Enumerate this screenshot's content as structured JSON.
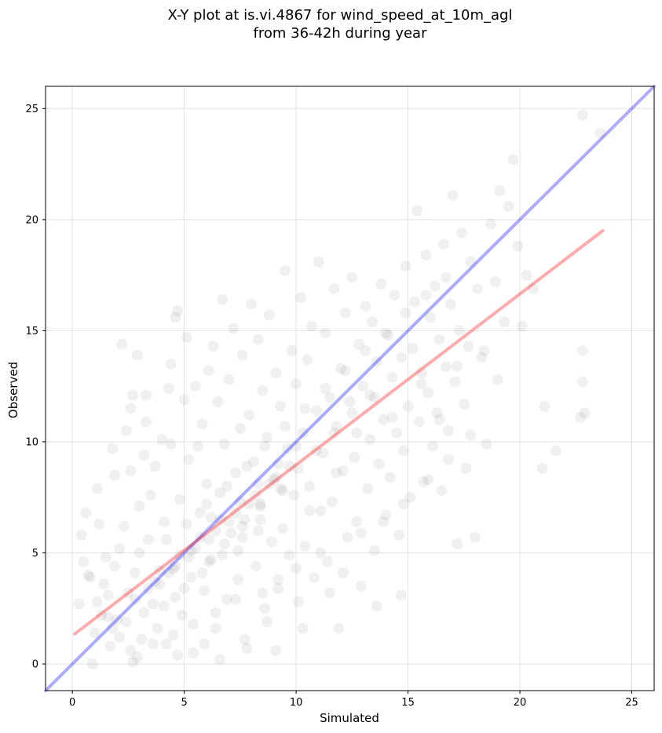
{
  "chart_data": {
    "type": "scatter",
    "title_line1": "X-Y plot at is.vi.4867 for wind_speed_at_10m_agl",
    "title_line2": "from 36-42h during year",
    "xlabel": "Simulated",
    "ylabel": "Observed",
    "xlim": [
      -1.2,
      26
    ],
    "ylim": [
      -1.2,
      26
    ],
    "x_ticks": [
      0,
      5,
      10,
      15,
      20,
      25
    ],
    "y_ticks": [
      0,
      5,
      10,
      15,
      20,
      25
    ],
    "grid": true,
    "series": [
      {
        "style": "scatter",
        "color": "#000000",
        "opacity": 0.06,
        "points": [
          [
            0.3,
            2.7
          ],
          [
            0.5,
            4.6
          ],
          [
            0.6,
            6.8
          ],
          [
            0.4,
            5.8
          ],
          [
            0.9,
            0.0
          ],
          [
            0.8,
            3.9
          ],
          [
            1.1,
            7.9
          ],
          [
            1.2,
            6.3
          ],
          [
            1.0,
            1.4
          ],
          [
            1.3,
            2.2
          ],
          [
            1.5,
            4.8
          ],
          [
            1.6,
            3.1
          ],
          [
            1.8,
            9.7
          ],
          [
            1.9,
            8.5
          ],
          [
            2.0,
            2.0
          ],
          [
            2.2,
            14.4
          ],
          [
            2.1,
            5.2
          ],
          [
            2.4,
            10.5
          ],
          [
            2.6,
            11.5
          ],
          [
            2.7,
            12.1
          ],
          [
            2.7,
            0.1
          ],
          [
            2.9,
            13.9
          ],
          [
            2.8,
            4.1
          ],
          [
            3.0,
            7.1
          ],
          [
            3.1,
            1.1
          ],
          [
            3.2,
            9.4
          ],
          [
            3.3,
            12.1
          ],
          [
            3.4,
            5.6
          ],
          [
            3.6,
            2.7
          ],
          [
            3.7,
            8.9
          ],
          [
            3.9,
            3.6
          ],
          [
            4.0,
            10.1
          ],
          [
            4.1,
            6.4
          ],
          [
            4.2,
            0.9
          ],
          [
            4.3,
            12.4
          ],
          [
            4.4,
            13.5
          ],
          [
            4.5,
            4.3
          ],
          [
            4.6,
            15.6
          ],
          [
            4.7,
            15.9
          ],
          [
            4.8,
            7.4
          ],
          [
            4.9,
            2.2
          ],
          [
            5.0,
            11.9
          ],
          [
            5.1,
            14.7
          ],
          [
            5.2,
            9.2
          ],
          [
            5.3,
            5.1
          ],
          [
            5.4,
            0.5
          ],
          [
            5.5,
            12.5
          ],
          [
            5.7,
            6.8
          ],
          [
            5.8,
            10.8
          ],
          [
            5.9,
            3.3
          ],
          [
            6.0,
            8.1
          ],
          [
            6.1,
            13.2
          ],
          [
            6.2,
            4.7
          ],
          [
            6.3,
            14.3
          ],
          [
            6.4,
            1.6
          ],
          [
            6.5,
            11.8
          ],
          [
            6.6,
            7.7
          ],
          [
            6.7,
            16.4
          ],
          [
            6.8,
            9.9
          ],
          [
            6.9,
            2.9
          ],
          [
            7.0,
            12.8
          ],
          [
            7.1,
            5.9
          ],
          [
            7.2,
            15.1
          ],
          [
            7.3,
            8.6
          ],
          [
            7.4,
            3.8
          ],
          [
            7.5,
            10.6
          ],
          [
            7.6,
            13.9
          ],
          [
            7.7,
            6.5
          ],
          [
            7.8,
            0.7
          ],
          [
            7.9,
            11.2
          ],
          [
            8.0,
            16.2
          ],
          [
            8.1,
            9.1
          ],
          [
            8.2,
            4.4
          ],
          [
            8.3,
            14.6
          ],
          [
            8.4,
            7.2
          ],
          [
            8.5,
            12.3
          ],
          [
            8.6,
            2.5
          ],
          [
            8.7,
            10.2
          ],
          [
            8.8,
            15.7
          ],
          [
            8.9,
            5.5
          ],
          [
            9.0,
            8.3
          ],
          [
            9.1,
            13.1
          ],
          [
            9.2,
            3.4
          ],
          [
            9.3,
            11.6
          ],
          [
            9.4,
            6.1
          ],
          [
            9.5,
            17.7
          ],
          [
            9.6,
            9.7
          ],
          [
            9.7,
            4.9
          ],
          [
            9.8,
            14.1
          ],
          [
            9.9,
            7.6
          ],
          [
            10.0,
            12.6
          ],
          [
            10.1,
            2.8
          ],
          [
            10.2,
            16.5
          ],
          [
            10.3,
            10.4
          ],
          [
            10.4,
            5.3
          ],
          [
            10.5,
            13.7
          ],
          [
            10.6,
            8.0
          ],
          [
            10.7,
            15.2
          ],
          [
            10.8,
            3.9
          ],
          [
            10.9,
            11.4
          ],
          [
            11.0,
            18.1
          ],
          [
            11.1,
            6.9
          ],
          [
            11.2,
            9.5
          ],
          [
            11.3,
            14.9
          ],
          [
            11.4,
            4.6
          ],
          [
            11.5,
            12.0
          ],
          [
            11.6,
            7.3
          ],
          [
            11.7,
            16.9
          ],
          [
            11.8,
            10.7
          ],
          [
            11.9,
            1.6
          ],
          [
            12.0,
            13.3
          ],
          [
            12.1,
            8.7
          ],
          [
            12.2,
            15.8
          ],
          [
            12.3,
            5.7
          ],
          [
            12.4,
            11.8
          ],
          [
            12.5,
            17.4
          ],
          [
            12.6,
            9.3
          ],
          [
            12.7,
            6.4
          ],
          [
            12.8,
            14.4
          ],
          [
            12.9,
            3.5
          ],
          [
            13.0,
            12.5
          ],
          [
            13.1,
            16.1
          ],
          [
            13.2,
            7.9
          ],
          [
            13.3,
            10.1
          ],
          [
            13.4,
            15.4
          ],
          [
            13.5,
            5.1
          ],
          [
            13.6,
            13.6
          ],
          [
            13.7,
            9.0
          ],
          [
            13.8,
            17.1
          ],
          [
            13.9,
            11.0
          ],
          [
            14.0,
            6.7
          ],
          [
            14.1,
            14.8
          ],
          [
            14.2,
            8.4
          ],
          [
            14.3,
            12.9
          ],
          [
            14.4,
            16.6
          ],
          [
            14.5,
            10.4
          ],
          [
            14.6,
            5.8
          ],
          [
            14.7,
            13.8
          ],
          [
            14.8,
            9.6
          ],
          [
            14.9,
            17.9
          ],
          [
            15.0,
            11.6
          ],
          [
            15.1,
            7.5
          ],
          [
            15.2,
            14.2
          ],
          [
            15.3,
            16.3
          ],
          [
            15.4,
            20.4
          ],
          [
            15.5,
            10.9
          ],
          [
            15.6,
            13.1
          ],
          [
            15.7,
            8.2
          ],
          [
            15.8,
            18.4
          ],
          [
            15.9,
            12.2
          ],
          [
            16.0,
            15.6
          ],
          [
            16.1,
            9.8
          ],
          [
            16.2,
            17.0
          ],
          [
            16.3,
            11.3
          ],
          [
            16.4,
            14.6
          ],
          [
            16.5,
            7.8
          ],
          [
            16.6,
            18.9
          ],
          [
            16.7,
            13.4
          ],
          [
            16.8,
            10.5
          ],
          [
            16.9,
            16.2
          ],
          [
            17.0,
            21.1
          ],
          [
            17.1,
            12.7
          ],
          [
            17.2,
            5.4
          ],
          [
            17.3,
            15.0
          ],
          [
            17.4,
            19.4
          ],
          [
            17.5,
            11.7
          ],
          [
            17.6,
            8.8
          ],
          [
            17.7,
            14.3
          ],
          [
            17.8,
            18.1
          ],
          [
            18.0,
            5.7
          ],
          [
            18.1,
            16.9
          ],
          [
            18.3,
            13.8
          ],
          [
            18.5,
            9.9
          ],
          [
            18.7,
            19.8
          ],
          [
            18.9,
            17.2
          ],
          [
            19.1,
            21.3
          ],
          [
            19.3,
            15.4
          ],
          [
            19.5,
            20.6
          ],
          [
            19.7,
            22.7
          ],
          [
            19.9,
            18.8
          ],
          [
            20.1,
            15.2
          ],
          [
            20.3,
            17.5
          ],
          [
            20.6,
            16.9
          ],
          [
            21.0,
            8.8
          ],
          [
            21.1,
            11.6
          ],
          [
            21.6,
            9.6
          ],
          [
            22.7,
            11.1
          ],
          [
            22.8,
            12.7
          ],
          [
            22.8,
            14.1
          ],
          [
            22.9,
            11.3
          ],
          [
            22.8,
            24.7
          ],
          [
            23.6,
            23.9
          ],
          [
            12.1,
            4.1
          ],
          [
            11.5,
            3.2
          ],
          [
            13.6,
            2.6
          ],
          [
            14.7,
            3.1
          ],
          [
            10.3,
            1.6
          ],
          [
            9.1,
            0.6
          ],
          [
            8.7,
            1.9
          ],
          [
            7.7,
            1.1
          ],
          [
            6.6,
            0.2
          ],
          [
            5.9,
            0.9
          ],
          [
            4.7,
            0.4
          ],
          [
            3.8,
            1.6
          ],
          [
            2.9,
            0.3
          ],
          [
            2.4,
            1.9
          ],
          [
            1.7,
            0.8
          ],
          [
            1.4,
            3.6
          ],
          [
            2.3,
            6.2
          ],
          [
            3.5,
            7.6
          ],
          [
            2.6,
            8.7
          ],
          [
            3.3,
            10.9
          ],
          [
            4.4,
            9.9
          ],
          [
            5.6,
            9.8
          ],
          [
            6.2,
            6.6
          ],
          [
            7.4,
            5.1
          ],
          [
            8.3,
            6.0
          ],
          [
            9.4,
            7.8
          ],
          [
            10.6,
            6.9
          ],
          [
            11.8,
            8.6
          ],
          [
            12.7,
            10.4
          ],
          [
            13.5,
            12.0
          ],
          [
            14.3,
            11.1
          ],
          [
            15.6,
            12.6
          ],
          [
            16.4,
            11.0
          ],
          [
            17.2,
            13.4
          ],
          [
            18.4,
            14.1
          ],
          [
            19.0,
            12.8
          ],
          [
            17.8,
            10.3
          ],
          [
            16.8,
            9.2
          ],
          [
            15.9,
            8.3
          ],
          [
            14.8,
            7.2
          ],
          [
            13.9,
            6.4
          ],
          [
            12.9,
            5.9
          ],
          [
            11.1,
            5.0
          ],
          [
            10.0,
            4.3
          ],
          [
            9.2,
            3.8
          ],
          [
            8.5,
            3.2
          ],
          [
            7.3,
            2.9
          ],
          [
            6.4,
            2.3
          ],
          [
            5.4,
            1.8
          ],
          [
            4.5,
            1.3
          ],
          [
            3.6,
            0.9
          ],
          [
            2.6,
            0.6
          ],
          [
            1.8,
            1.6
          ],
          [
            1.1,
            2.8
          ],
          [
            0.7,
            4.0
          ],
          [
            1.9,
            4.4
          ],
          [
            3.0,
            5.0
          ],
          [
            4.2,
            5.6
          ],
          [
            5.1,
            6.3
          ],
          [
            6.0,
            7.2
          ],
          [
            6.9,
            8.0
          ],
          [
            7.8,
            8.9
          ],
          [
            8.6,
            9.8
          ],
          [
            9.5,
            10.7
          ],
          [
            10.4,
            11.5
          ],
          [
            11.3,
            12.4
          ],
          [
            12.2,
            13.2
          ],
          [
            13.1,
            14.1
          ],
          [
            14.0,
            14.9
          ],
          [
            14.9,
            15.8
          ],
          [
            15.8,
            16.6
          ],
          [
            16.7,
            17.4
          ],
          [
            4.6,
            3.0
          ],
          [
            5.3,
            3.9
          ],
          [
            6.1,
            4.6
          ],
          [
            6.8,
            5.4
          ],
          [
            7.6,
            6.2
          ],
          [
            8.4,
            7.1
          ],
          [
            9.3,
            7.9
          ],
          [
            10.1,
            8.8
          ],
          [
            10.9,
            9.6
          ],
          [
            11.7,
            10.4
          ],
          [
            12.5,
            11.3
          ],
          [
            13.3,
            12.1
          ],
          [
            3.2,
            2.3
          ],
          [
            2.5,
            3.2
          ],
          [
            1.6,
            2.1
          ],
          [
            2.1,
            1.2
          ],
          [
            3.9,
            4.2
          ],
          [
            4.8,
            4.9
          ],
          [
            5.7,
            5.7
          ],
          [
            6.6,
            6.5
          ],
          [
            7.5,
            7.3
          ],
          [
            8.3,
            8.1
          ],
          [
            9.2,
            9.0
          ],
          [
            10.0,
            9.8
          ],
          [
            4.1,
            2.6
          ],
          [
            5.0,
            3.4
          ],
          [
            5.8,
            4.1
          ],
          [
            6.7,
            4.9
          ],
          [
            7.6,
            5.7
          ],
          [
            8.4,
            6.5
          ],
          [
            3.4,
            3.4
          ],
          [
            4.3,
            4.1
          ],
          [
            5.2,
            4.8
          ],
          [
            6.1,
            5.6
          ],
          [
            7.0,
            6.4
          ],
          [
            7.9,
            7.2
          ],
          [
            8.8,
            8.1
          ],
          [
            9.7,
            8.9
          ],
          [
            2.8,
            2.9
          ],
          [
            3.7,
            3.7
          ],
          [
            4.6,
            4.4
          ],
          [
            5.5,
            5.2
          ],
          [
            6.4,
            6.0
          ],
          [
            7.3,
            6.8
          ],
          [
            8.2,
            7.6
          ],
          [
            9.1,
            8.4
          ]
        ]
      },
      {
        "style": "line",
        "name": "",
        "color": "#0000ff",
        "opacity": 0.33,
        "points": [
          [
            -1.2,
            -1.2
          ],
          [
            26,
            26
          ]
        ]
      },
      {
        "style": "line",
        "name": "",
        "color": "#ff0000",
        "opacity": 0.33,
        "points": [
          [
            0.1,
            1.35
          ],
          [
            23.7,
            19.5
          ]
        ]
      }
    ]
  }
}
